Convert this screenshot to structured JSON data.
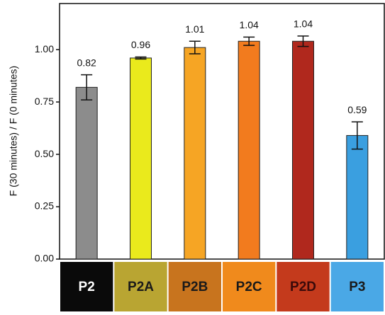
{
  "chart_data": {
    "type": "bar",
    "y_label": "F (30 minutes) / F (0 minutes)",
    "categories": [
      "P2",
      "P2A",
      "P2B",
      "P2C",
      "P2D",
      "P3"
    ],
    "values": [
      0.82,
      0.96,
      1.01,
      1.04,
      1.04,
      0.59
    ],
    "errors": [
      0.06,
      0.005,
      0.03,
      0.02,
      0.025,
      0.065
    ],
    "colors": [
      "#8c8c8c",
      "#eaea1c",
      "#f6a524",
      "#f27b1e",
      "#b0281d",
      "#3a9fe0"
    ],
    "label_backgrounds": [
      "#0a0a0a",
      "#b9a532",
      "#c8741e",
      "#f08a1c",
      "#c43a1c",
      "#4aa8e6"
    ],
    "label_text_colors": [
      "#ffffff",
      "#1a1a1a",
      "#1a1a1a",
      "#1a1a1a",
      "#3a0a0a",
      "#1a1a1a"
    ],
    "ylim": [
      0,
      1.22
    ],
    "yticks": [
      {
        "value": 0,
        "label": "0.00"
      },
      {
        "value": 0.25,
        "label": "0.25"
      },
      {
        "value": 0.5,
        "label": "0.50"
      },
      {
        "value": 0.75,
        "label": "0.75"
      },
      {
        "value": 1,
        "label": "1.00"
      }
    ]
  }
}
